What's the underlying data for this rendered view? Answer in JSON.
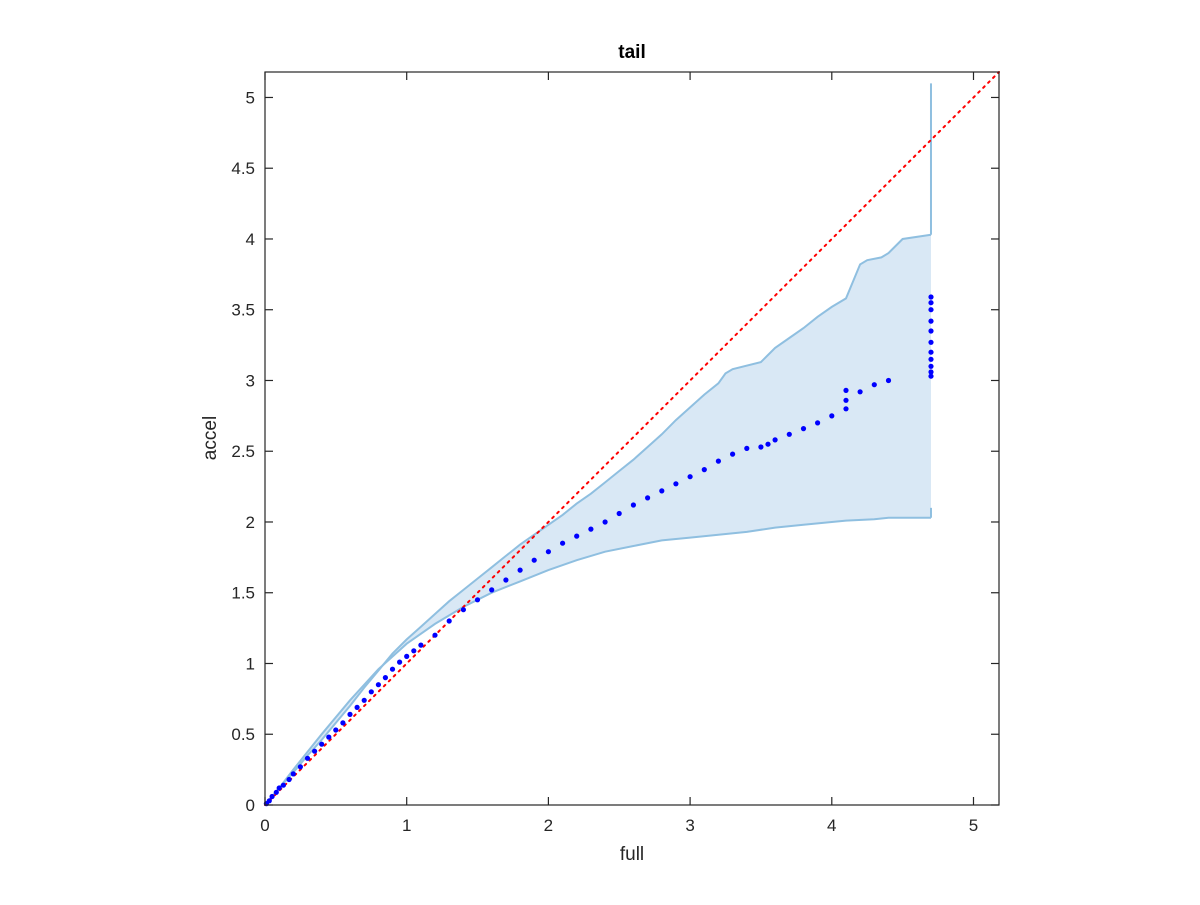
{
  "chart_data": {
    "type": "scatter",
    "title": "tail",
    "xlabel": "full",
    "ylabel": "accel",
    "xlim": [
      0,
      5.18
    ],
    "ylim": [
      0,
      5.18
    ],
    "xticks": [
      "0",
      "1",
      "2",
      "3",
      "4",
      "5"
    ],
    "yticks": [
      "0",
      "0.5",
      "1",
      "1.5",
      "2",
      "2.5",
      "3",
      "3.5",
      "4",
      "4.5",
      "5"
    ],
    "grid": false,
    "legend": "none",
    "colors": {
      "points": "#0000ff",
      "reference_line": "#ff0000",
      "band_fill": "#d9e8f5",
      "band_edge": "#8fbfe0",
      "axes": "#262626"
    },
    "reference_line": {
      "x": [
        0,
        5.18
      ],
      "y": [
        0,
        5.18
      ],
      "style": "dotted"
    },
    "band": {
      "upper": [
        [
          0,
          0
        ],
        [
          0.1,
          0.12
        ],
        [
          0.2,
          0.23
        ],
        [
          0.3,
          0.35
        ],
        [
          0.4,
          0.46
        ],
        [
          0.5,
          0.58
        ],
        [
          0.6,
          0.7
        ],
        [
          0.7,
          0.83
        ],
        [
          0.8,
          0.95
        ],
        [
          0.9,
          1.07
        ],
        [
          1.0,
          1.17
        ],
        [
          1.1,
          1.26
        ],
        [
          1.2,
          1.35
        ],
        [
          1.3,
          1.44
        ],
        [
          1.4,
          1.52
        ],
        [
          1.5,
          1.6
        ],
        [
          1.6,
          1.68
        ],
        [
          1.7,
          1.76
        ],
        [
          1.8,
          1.84
        ],
        [
          1.9,
          1.91
        ],
        [
          2.0,
          1.98
        ],
        [
          2.1,
          2.05
        ],
        [
          2.2,
          2.13
        ],
        [
          2.3,
          2.2
        ],
        [
          2.4,
          2.28
        ],
        [
          2.5,
          2.36
        ],
        [
          2.6,
          2.44
        ],
        [
          2.7,
          2.53
        ],
        [
          2.8,
          2.62
        ],
        [
          2.9,
          2.72
        ],
        [
          3.0,
          2.81
        ],
        [
          3.1,
          2.9
        ],
        [
          3.2,
          2.98
        ],
        [
          3.25,
          3.05
        ],
        [
          3.3,
          3.08
        ],
        [
          3.5,
          3.13
        ],
        [
          3.55,
          3.18
        ],
        [
          3.6,
          3.23
        ],
        [
          3.7,
          3.3
        ],
        [
          3.8,
          3.37
        ],
        [
          3.9,
          3.45
        ],
        [
          4.0,
          3.52
        ],
        [
          4.1,
          3.58
        ],
        [
          4.2,
          3.82
        ],
        [
          4.25,
          3.85
        ],
        [
          4.35,
          3.87
        ],
        [
          4.4,
          3.9
        ],
        [
          4.5,
          4.0
        ],
        [
          4.7,
          4.03
        ]
      ],
      "lower": [
        [
          4.7,
          2.03
        ],
        [
          4.6,
          2.03
        ],
        [
          4.5,
          2.03
        ],
        [
          4.4,
          2.03
        ],
        [
          4.3,
          2.02
        ],
        [
          4.1,
          2.01
        ],
        [
          4.0,
          2.0
        ],
        [
          3.8,
          1.98
        ],
        [
          3.6,
          1.96
        ],
        [
          3.4,
          1.93
        ],
        [
          3.2,
          1.91
        ],
        [
          3.0,
          1.89
        ],
        [
          2.8,
          1.87
        ],
        [
          2.6,
          1.83
        ],
        [
          2.4,
          1.79
        ],
        [
          2.2,
          1.73
        ],
        [
          2.0,
          1.66
        ],
        [
          1.8,
          1.58
        ],
        [
          1.6,
          1.5
        ],
        [
          1.4,
          1.4
        ],
        [
          1.2,
          1.28
        ],
        [
          1.0,
          1.14
        ],
        [
          0.8,
          0.96
        ],
        [
          0.6,
          0.74
        ],
        [
          0.4,
          0.5
        ],
        [
          0.2,
          0.25
        ],
        [
          0.1,
          0.12
        ],
        [
          0,
          0
        ]
      ],
      "upper_tail_x": 4.7,
      "upper_tail_y": 5.1,
      "lower_tail_y": 2.1
    },
    "points": [
      [
        0.01,
        0.01
      ],
      [
        0.03,
        0.03
      ],
      [
        0.05,
        0.06
      ],
      [
        0.08,
        0.09
      ],
      [
        0.1,
        0.12
      ],
      [
        0.13,
        0.14
      ],
      [
        0.17,
        0.18
      ],
      [
        0.2,
        0.22
      ],
      [
        0.25,
        0.27
      ],
      [
        0.3,
        0.33
      ],
      [
        0.35,
        0.38
      ],
      [
        0.4,
        0.43
      ],
      [
        0.45,
        0.48
      ],
      [
        0.5,
        0.53
      ],
      [
        0.55,
        0.58
      ],
      [
        0.6,
        0.64
      ],
      [
        0.65,
        0.69
      ],
      [
        0.7,
        0.74
      ],
      [
        0.75,
        0.8
      ],
      [
        0.8,
        0.85
      ],
      [
        0.85,
        0.9
      ],
      [
        0.9,
        0.96
      ],
      [
        0.95,
        1.01
      ],
      [
        1.0,
        1.05
      ],
      [
        1.05,
        1.09
      ],
      [
        1.1,
        1.13
      ],
      [
        1.2,
        1.2
      ],
      [
        1.3,
        1.3
      ],
      [
        1.4,
        1.38
      ],
      [
        1.5,
        1.45
      ],
      [
        1.6,
        1.52
      ],
      [
        1.7,
        1.59
      ],
      [
        1.8,
        1.66
      ],
      [
        1.9,
        1.73
      ],
      [
        2.0,
        1.79
      ],
      [
        2.1,
        1.85
      ],
      [
        2.2,
        1.9
      ],
      [
        2.3,
        1.95
      ],
      [
        2.4,
        2.0
      ],
      [
        2.5,
        2.06
      ],
      [
        2.6,
        2.12
      ],
      [
        2.7,
        2.17
      ],
      [
        2.8,
        2.22
      ],
      [
        2.9,
        2.27
      ],
      [
        3.0,
        2.32
      ],
      [
        3.1,
        2.37
      ],
      [
        3.2,
        2.43
      ],
      [
        3.3,
        2.48
      ],
      [
        3.4,
        2.52
      ],
      [
        3.5,
        2.53
      ],
      [
        3.55,
        2.55
      ],
      [
        3.6,
        2.58
      ],
      [
        3.7,
        2.62
      ],
      [
        3.8,
        2.66
      ],
      [
        3.9,
        2.7
      ],
      [
        4.0,
        2.75
      ],
      [
        4.1,
        2.8
      ],
      [
        4.1,
        2.86
      ],
      [
        4.1,
        2.93
      ],
      [
        4.2,
        2.92
      ],
      [
        4.3,
        2.97
      ],
      [
        4.4,
        3.0
      ],
      [
        4.7,
        3.03
      ],
      [
        4.7,
        3.06
      ],
      [
        4.7,
        3.1
      ],
      [
        4.7,
        3.15
      ],
      [
        4.7,
        3.2
      ],
      [
        4.7,
        3.27
      ],
      [
        4.7,
        3.35
      ],
      [
        4.7,
        3.42
      ],
      [
        4.7,
        3.5
      ],
      [
        4.7,
        3.55
      ],
      [
        4.7,
        3.59
      ]
    ]
  }
}
